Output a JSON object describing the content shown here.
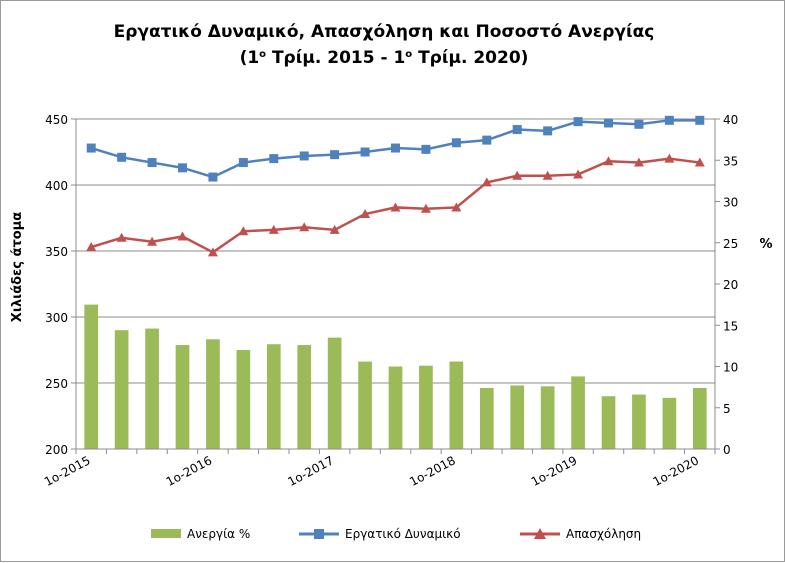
{
  "chart_data": {
    "type": "bar+line",
    "title_line1": "Εργατικό Δυναμικό, Απασχόληση και Ποσοστό Ανεργίας",
    "title_line2": {
      "open": "(1",
      "sup1": "ο",
      "mid": " Τρίμ. 2015 - 1",
      "sup2": "ο",
      "close": " Τρίμ. 2020)"
    },
    "y_left_label": "Χιλιάδες άτομα",
    "y_right_label": "%",
    "y_left_range": [
      200,
      450
    ],
    "y_left_ticks": [
      200,
      250,
      300,
      350,
      400,
      450
    ],
    "y_right_range": [
      0,
      40
    ],
    "y_right_ticks": [
      0,
      5,
      10,
      15,
      20,
      25,
      30,
      35,
      40
    ],
    "x_tick_labels": [
      {
        "index": 0,
        "label": "1ο-2015"
      },
      {
        "index": 4,
        "label": "1ο-2016"
      },
      {
        "index": 8,
        "label": "1ο-2017"
      },
      {
        "index": 12,
        "label": "1ο-2018"
      },
      {
        "index": 16,
        "label": "1ο-2019"
      },
      {
        "index": 20,
        "label": "1ο-2020"
      }
    ],
    "grid": "horizontal",
    "legend_position": "bottom",
    "series": [
      {
        "name": "Ανεργία %",
        "type": "bar",
        "axis": "right",
        "color": "#9bbb59",
        "values": [
          17.5,
          14.4,
          14.6,
          12.6,
          13.3,
          12.0,
          12.7,
          12.6,
          13.5,
          10.6,
          10.0,
          10.1,
          10.6,
          7.4,
          7.7,
          7.6,
          8.8,
          6.4,
          6.6,
          6.2,
          7.4
        ]
      },
      {
        "name": "Εργατικό Δυναμικό",
        "type": "line",
        "axis": "left",
        "color": "#4f81bd",
        "marker": "square",
        "values": [
          428,
          421,
          417,
          413,
          406,
          417,
          420,
          422,
          423,
          425,
          428,
          427,
          432,
          434,
          442,
          441,
          448,
          447,
          446,
          449,
          449
        ]
      },
      {
        "name": "Απασχόληση",
        "type": "line",
        "axis": "left",
        "color": "#c0504d",
        "marker": "triangle",
        "values": [
          353,
          360,
          357,
          361,
          349,
          365,
          366,
          368,
          366,
          378,
          383,
          382,
          383,
          402,
          407,
          407,
          408,
          418,
          417,
          420,
          417
        ]
      }
    ]
  }
}
